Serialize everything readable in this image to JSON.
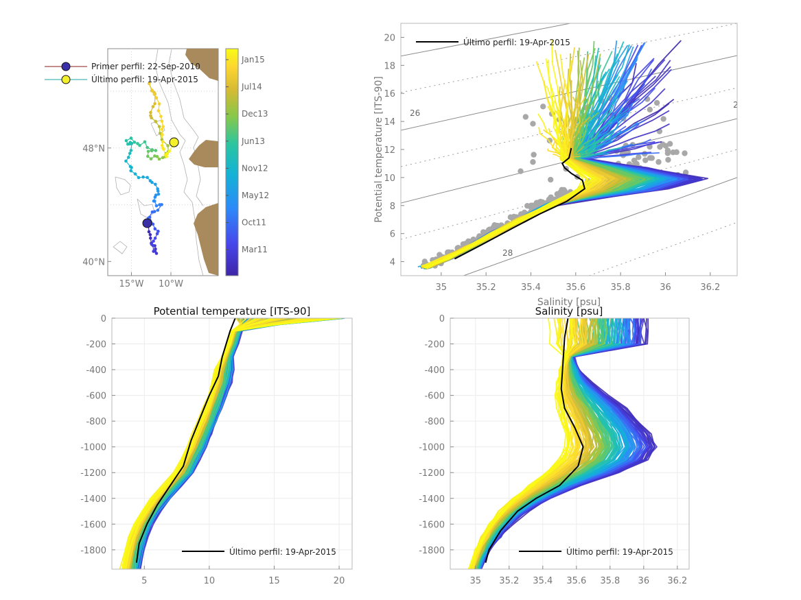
{
  "colors": {
    "first_marker": "#3b2fa8",
    "last_marker": "#f5f02c",
    "first_line": "#8b1a1a",
    "last_line": "#18a6a0",
    "land": "#a88a5c",
    "grey_dots": "#a8a8a8",
    "latest_profile": "#000000",
    "colormap": [
      "#3e26a8",
      "#4746eb",
      "#2c8bf9",
      "#13b3d4",
      "#2bc5a0",
      "#86c84a",
      "#d7ba33",
      "#fcd731",
      "#f9fb15"
    ]
  },
  "chart_data": [
    {
      "id": "map",
      "type": "scatter",
      "description_axes": "longitude vs latitude",
      "x_ticks": [
        {
          "value": -15,
          "label": "15°W"
        },
        {
          "value": -10,
          "label": "10°W"
        }
      ],
      "y_ticks": [
        {
          "value": 40,
          "label": "40°N"
        },
        {
          "value": 48,
          "label": "48°N"
        }
      ],
      "xlim": [
        -18,
        -4
      ],
      "ylim": [
        39,
        55
      ],
      "legend": [
        {
          "label": "Primer perfil: 22-Sep-2010",
          "marker_color": "#3b2fa8",
          "line_color": "#8b1a1a"
        },
        {
          "label": "Último perfil: 19-Apr-2015",
          "marker_color": "#f5f02c",
          "line_color": "#18a6a0"
        }
      ],
      "first_position": [
        -13.0,
        42.7
      ],
      "last_position": [
        -9.6,
        48.4
      ],
      "colorbar_ticks": [
        "Jan15",
        "Jul14",
        "Dec13",
        "Jun13",
        "Nov12",
        "May12",
        "Oct11",
        "Mar11"
      ]
    },
    {
      "id": "ts",
      "type": "line",
      "xlabel": "Salinity [psu]",
      "ylabel": "Potential temperature [ITS-90]",
      "xlim": [
        34.82,
        36.32
      ],
      "ylim": [
        3,
        21
      ],
      "x_ticks": [
        "35",
        "35.2",
        "35.4",
        "35.6",
        "35.8",
        "36",
        "36.2"
      ],
      "y_ticks": [
        "4",
        "6",
        "8",
        "10",
        "12",
        "14",
        "16",
        "18",
        "20"
      ],
      "isopycnal_labels": [
        "26",
        "28",
        "2"
      ],
      "legend_label": "Último perfil: 19-Apr-2015",
      "latest_profile_s": [
        35.06,
        35.18,
        35.32,
        35.44,
        35.56,
        35.64,
        35.63,
        35.58,
        35.55,
        35.54,
        35.57,
        35.58
      ],
      "latest_profile_t": [
        4.2,
        5.2,
        6.4,
        7.4,
        8.3,
        9.2,
        9.8,
        10.3,
        10.7,
        11.0,
        11.4,
        12.1
      ]
    },
    {
      "id": "temp_depth",
      "type": "line",
      "title": "Potential temperature [ITS-90]",
      "xlim": [
        2.5,
        21
      ],
      "ylim": [
        -1950,
        0
      ],
      "x_ticks": [
        "5",
        "10",
        "15",
        "20"
      ],
      "y_ticks": [
        "0",
        "-200",
        "-400",
        "-600",
        "-800",
        "-1000",
        "-1200",
        "-1400",
        "-1600",
        "-1800"
      ],
      "legend_label": "Último perfil: 19-Apr-2015",
      "latest_profile_t": [
        12.0,
        11.6,
        11.0,
        10.7,
        10.0,
        9.4,
        8.6,
        8.0,
        7.0,
        6.0,
        5.2,
        4.6,
        4.4
      ],
      "latest_profile_d": [
        0,
        -100,
        -300,
        -450,
        -600,
        -750,
        -950,
        -1150,
        -1300,
        -1450,
        -1600,
        -1750,
        -1900
      ]
    },
    {
      "id": "sal_depth",
      "type": "line",
      "title": "Salinity [psu]",
      "xlim": [
        34.85,
        36.27
      ],
      "ylim": [
        -1950,
        0
      ],
      "x_ticks": [
        "35",
        "35.2",
        "35.4",
        "35.6",
        "35.8",
        "36",
        "36.2"
      ],
      "y_ticks": [
        "0",
        "-200",
        "-400",
        "-600",
        "-800",
        "-1000",
        "-1200",
        "-1400",
        "-1600",
        "-1800"
      ],
      "legend_label": "Último perfil: 19-Apr-2015",
      "latest_profile_s": [
        35.55,
        35.53,
        35.52,
        35.51,
        35.53,
        35.59,
        35.64,
        35.61,
        35.5,
        35.36,
        35.25,
        35.15,
        35.08,
        35.06
      ],
      "latest_profile_d": [
        0,
        -150,
        -350,
        -550,
        -700,
        -850,
        -1000,
        -1150,
        -1300,
        -1400,
        -1500,
        -1650,
        -1800,
        -1900
      ]
    }
  ]
}
